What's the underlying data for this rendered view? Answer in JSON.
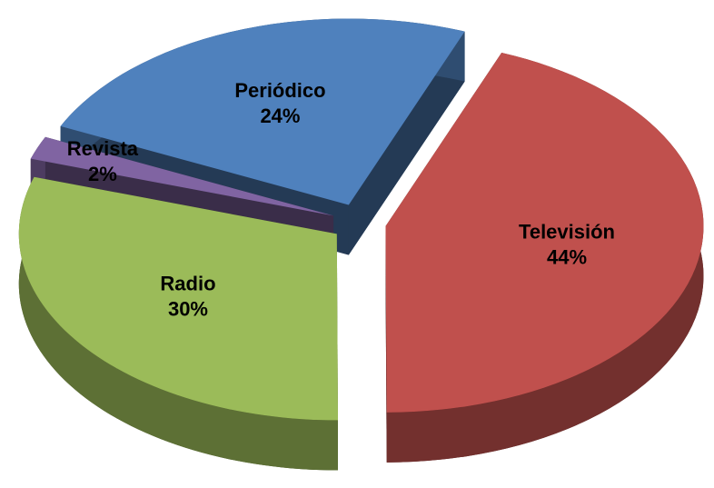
{
  "chart_data": {
    "type": "pie",
    "categories": [
      "Periódico",
      "Televisión",
      "Radio",
      "Revista"
    ],
    "values": [
      24,
      44,
      30,
      2
    ],
    "value_labels": [
      "24%",
      "44%",
      "30%",
      "2%"
    ],
    "colors": [
      "#4f81bd",
      "#c0504d",
      "#9bbb59",
      "#8064a2"
    ]
  }
}
